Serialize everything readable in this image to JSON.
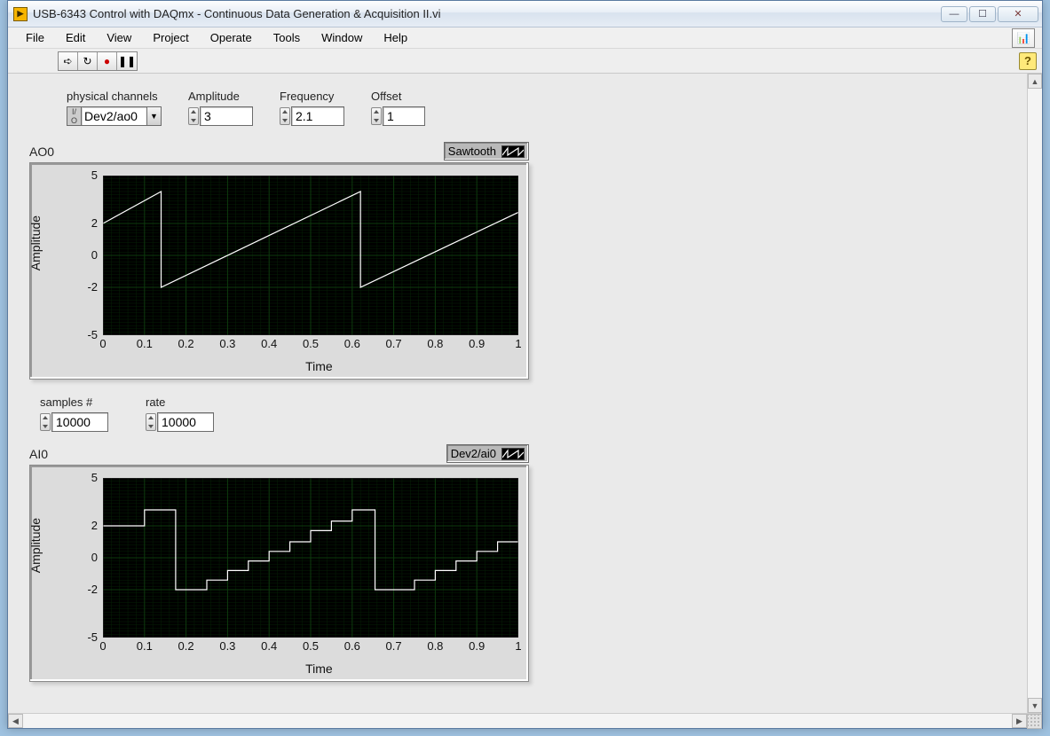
{
  "window": {
    "title": "USB-6343 Control with DAQmx - Continuous Data Generation & Acquisition II.vi",
    "icon_text": "▶"
  },
  "menu": [
    "File",
    "Edit",
    "View",
    "Project",
    "Operate",
    "Tools",
    "Window",
    "Help"
  ],
  "toolbar": {
    "buttons": [
      "run",
      "run-cont",
      "abort",
      "pause"
    ],
    "glyphs": [
      "➪",
      "↻",
      "●",
      "❚❚"
    ]
  },
  "controls": {
    "physical_channels": {
      "label": "physical channels",
      "value": "Dev2/ao0"
    },
    "amplitude": {
      "label": "Amplitude",
      "value": "3"
    },
    "frequency": {
      "label": "Frequency",
      "value": "2.1"
    },
    "offset": {
      "label": "Offset",
      "value": "1"
    },
    "samples": {
      "label": "samples #",
      "value": "10000"
    },
    "rate": {
      "label": "rate",
      "value": "10000"
    }
  },
  "charts": {
    "ao0": {
      "type": "line",
      "title": "AO0",
      "legend": "Sawtooth",
      "xlabel": "Time",
      "ylabel": "Amplitude",
      "xlim": [
        0,
        1
      ],
      "ylim": [
        -5,
        5
      ],
      "xticks": [
        0,
        0.1,
        0.2,
        0.3,
        0.4,
        0.5,
        0.6,
        0.7,
        0.8,
        0.9,
        1
      ],
      "yticks": [
        -5,
        -2,
        0,
        2,
        5
      ],
      "bg": "#000000",
      "grid_major": "#0d3a0d",
      "grid_minor": "#062006",
      "line_color": "#ffffff",
      "line_width": 1.2,
      "points": [
        [
          0,
          2.0
        ],
        [
          0.14,
          4.0
        ],
        [
          0.14,
          -2.0
        ],
        [
          0.62,
          4.0
        ],
        [
          0.62,
          -2.0
        ],
        [
          1.0,
          2.7
        ]
      ]
    },
    "ai0": {
      "type": "step",
      "title": "AI0",
      "legend": "Dev2/ai0",
      "xlabel": "Time",
      "ylabel": "Amplitude",
      "xlim": [
        0,
        1
      ],
      "ylim": [
        -5,
        5
      ],
      "xticks": [
        0,
        0.1,
        0.2,
        0.3,
        0.4,
        0.5,
        0.6,
        0.7,
        0.8,
        0.9,
        1
      ],
      "yticks": [
        -5,
        -2,
        0,
        2,
        5
      ],
      "bg": "#000000",
      "grid_major": "#0d3a0d",
      "grid_minor": "#062006",
      "line_color": "#ffffff",
      "line_width": 1.2,
      "step_dx": 0.05,
      "points": [
        [
          0,
          2.0
        ],
        [
          0.05,
          2.0
        ],
        [
          0.1,
          3.0
        ],
        [
          0.15,
          3.0
        ],
        [
          0.175,
          -2.0
        ],
        [
          0.2,
          -2.0
        ],
        [
          0.25,
          -1.4
        ],
        [
          0.3,
          -0.8
        ],
        [
          0.35,
          -0.2
        ],
        [
          0.4,
          0.4
        ],
        [
          0.45,
          1.0
        ],
        [
          0.5,
          1.7
        ],
        [
          0.55,
          2.3
        ],
        [
          0.6,
          3.0
        ],
        [
          0.65,
          3.0
        ],
        [
          0.655,
          -2.0
        ],
        [
          0.7,
          -2.0
        ],
        [
          0.75,
          -1.4
        ],
        [
          0.8,
          -0.8
        ],
        [
          0.85,
          -0.2
        ],
        [
          0.9,
          0.4
        ],
        [
          0.95,
          1.0
        ],
        [
          1.0,
          3.0
        ]
      ]
    }
  },
  "colors": {
    "panel_bg": "#eaeaea",
    "frame_bg": "#dcdcdc",
    "accent_yellow": "#f7b500"
  }
}
